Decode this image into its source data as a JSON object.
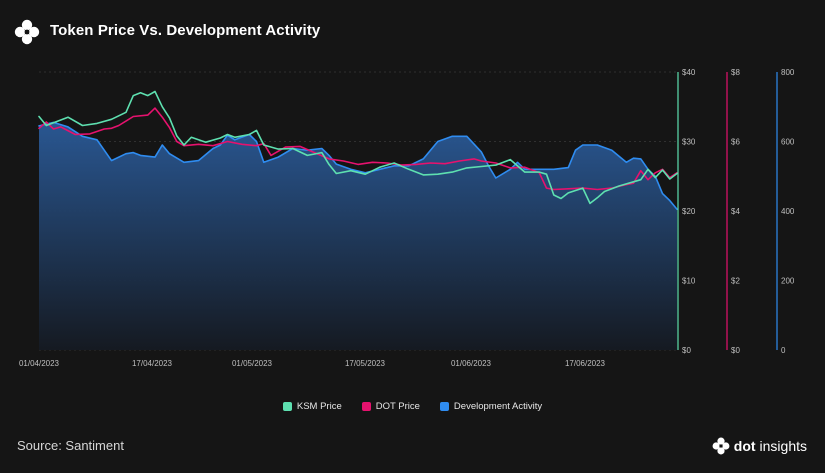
{
  "header": {
    "title": "Token Price Vs. Development Activity",
    "logo_icon": "flower-logo-icon"
  },
  "footer": {
    "source": "Source: Santiment",
    "brand_part1": "dot",
    "brand_part2": "insights"
  },
  "colors": {
    "background": "#151515",
    "ksm": "#5ee0b0",
    "dot": "#e6126e",
    "dev": "#2f8cf0",
    "grid": "#3a3a3a",
    "text": "#bfbfbf"
  },
  "chart_data": {
    "type": "line",
    "title": "Token Price Vs. Development Activity",
    "x_ticks": [
      "01/04/2023",
      "17/04/2023",
      "01/05/2023",
      "17/05/2023",
      "01/06/2023",
      "17/06/2023"
    ],
    "x_range": [
      "2023-04-01",
      "2023-06-28"
    ],
    "axes": [
      {
        "id": "ksm",
        "ticks": [
          "$40",
          "$30",
          "$20",
          "$10",
          "$0"
        ],
        "range": [
          0,
          40
        ],
        "color": "#5ee0b0"
      },
      {
        "id": "dot",
        "ticks": [
          "$8",
          "$6",
          "$4",
          "$2",
          "$0"
        ],
        "range": [
          0,
          8
        ],
        "color": "#e6126e"
      },
      {
        "id": "dev",
        "ticks": [
          "800",
          "600",
          "400",
          "200",
          "0"
        ],
        "range": [
          0,
          800
        ],
        "color": "#2f8cf0"
      }
    ],
    "grid": "horizontal dashed",
    "legend_position": "bottom",
    "series": [
      {
        "name": "KSM Price",
        "axis": "ksm",
        "color": "#5ee0b0",
        "points": [
          [
            "2023-04-01",
            33.6
          ],
          [
            "2023-04-02",
            32.3
          ],
          [
            "2023-04-03",
            32.7
          ],
          [
            "2023-04-05",
            33.5
          ],
          [
            "2023-04-07",
            32.3
          ],
          [
            "2023-04-09",
            32.6
          ],
          [
            "2023-04-11",
            33.2
          ],
          [
            "2023-04-13",
            34.2
          ],
          [
            "2023-04-14",
            36.6
          ],
          [
            "2023-04-15",
            37.0
          ],
          [
            "2023-04-16",
            36.6
          ],
          [
            "2023-04-17",
            37.2
          ],
          [
            "2023-04-18",
            35.0
          ],
          [
            "2023-04-19",
            33.4
          ],
          [
            "2023-04-20",
            30.8
          ],
          [
            "2023-04-21",
            29.5
          ],
          [
            "2023-04-22",
            30.6
          ],
          [
            "2023-04-24",
            29.9
          ],
          [
            "2023-04-26",
            30.5
          ],
          [
            "2023-04-27",
            31.0
          ],
          [
            "2023-04-28",
            30.6
          ],
          [
            "2023-04-30",
            31.0
          ],
          [
            "2023-05-01",
            31.6
          ],
          [
            "2023-05-02",
            29.5
          ],
          [
            "2023-05-04",
            28.9
          ],
          [
            "2023-05-06",
            29.0
          ],
          [
            "2023-05-08",
            28.0
          ],
          [
            "2023-05-10",
            28.4
          ],
          [
            "2023-05-11",
            26.7
          ],
          [
            "2023-05-12",
            25.4
          ],
          [
            "2023-05-14",
            25.8
          ],
          [
            "2023-05-16",
            25.3
          ],
          [
            "2023-05-18",
            26.3
          ],
          [
            "2023-05-20",
            26.9
          ],
          [
            "2023-05-22",
            26.0
          ],
          [
            "2023-05-24",
            25.2
          ],
          [
            "2023-05-26",
            25.3
          ],
          [
            "2023-05-28",
            25.6
          ],
          [
            "2023-05-30",
            26.2
          ],
          [
            "2023-06-01",
            26.4
          ],
          [
            "2023-06-03",
            26.6
          ],
          [
            "2023-06-05",
            27.4
          ],
          [
            "2023-06-07",
            25.6
          ],
          [
            "2023-06-09",
            25.6
          ],
          [
            "2023-06-10",
            25.3
          ],
          [
            "2023-06-11",
            22.3
          ],
          [
            "2023-06-12",
            21.8
          ],
          [
            "2023-06-13",
            22.6
          ],
          [
            "2023-06-15",
            23.3
          ],
          [
            "2023-06-16",
            21.1
          ],
          [
            "2023-06-17",
            21.9
          ],
          [
            "2023-06-18",
            22.8
          ],
          [
            "2023-06-20",
            23.6
          ],
          [
            "2023-06-22",
            24.2
          ],
          [
            "2023-06-23",
            24.5
          ],
          [
            "2023-06-24",
            26.0
          ],
          [
            "2023-06-25",
            24.8
          ],
          [
            "2023-06-26",
            25.9
          ],
          [
            "2023-06-27",
            24.6
          ],
          [
            "2023-06-28",
            25.4
          ]
        ]
      },
      {
        "name": "DOT Price",
        "axis": "dot",
        "color": "#e6126e",
        "points": [
          [
            "2023-04-01",
            6.38
          ],
          [
            "2023-04-02",
            6.56
          ],
          [
            "2023-04-03",
            6.36
          ],
          [
            "2023-04-04",
            6.42
          ],
          [
            "2023-04-06",
            6.2
          ],
          [
            "2023-04-08",
            6.22
          ],
          [
            "2023-04-10",
            6.36
          ],
          [
            "2023-04-11",
            6.38
          ],
          [
            "2023-04-12",
            6.46
          ],
          [
            "2023-04-14",
            6.72
          ],
          [
            "2023-04-16",
            6.76
          ],
          [
            "2023-04-17",
            6.96
          ],
          [
            "2023-04-18",
            6.7
          ],
          [
            "2023-04-19",
            6.4
          ],
          [
            "2023-04-20",
            6.0
          ],
          [
            "2023-04-21",
            5.88
          ],
          [
            "2023-04-23",
            5.92
          ],
          [
            "2023-04-25",
            5.88
          ],
          [
            "2023-04-27",
            6.0
          ],
          [
            "2023-04-29",
            5.92
          ],
          [
            "2023-05-01",
            5.88
          ],
          [
            "2023-05-02",
            5.94
          ],
          [
            "2023-05-03",
            5.6
          ],
          [
            "2023-05-05",
            5.84
          ],
          [
            "2023-05-07",
            5.86
          ],
          [
            "2023-05-09",
            5.68
          ],
          [
            "2023-05-11",
            5.5
          ],
          [
            "2023-05-13",
            5.44
          ],
          [
            "2023-05-15",
            5.34
          ],
          [
            "2023-05-17",
            5.4
          ],
          [
            "2023-05-19",
            5.38
          ],
          [
            "2023-05-21",
            5.32
          ],
          [
            "2023-05-23",
            5.34
          ],
          [
            "2023-05-25",
            5.38
          ],
          [
            "2023-05-27",
            5.36
          ],
          [
            "2023-05-29",
            5.44
          ],
          [
            "2023-05-31",
            5.5
          ],
          [
            "2023-06-01",
            5.44
          ],
          [
            "2023-06-03",
            5.38
          ],
          [
            "2023-06-05",
            5.24
          ],
          [
            "2023-06-07",
            5.26
          ],
          [
            "2023-06-09",
            5.1
          ],
          [
            "2023-06-10",
            4.66
          ],
          [
            "2023-06-11",
            4.62
          ],
          [
            "2023-06-13",
            4.64
          ],
          [
            "2023-06-15",
            4.66
          ],
          [
            "2023-06-17",
            4.62
          ],
          [
            "2023-06-19",
            4.66
          ],
          [
            "2023-06-21",
            4.76
          ],
          [
            "2023-06-22",
            4.8
          ],
          [
            "2023-06-23",
            5.16
          ],
          [
            "2023-06-24",
            4.9
          ],
          [
            "2023-06-25",
            5.1
          ],
          [
            "2023-06-26",
            5.2
          ],
          [
            "2023-06-27",
            4.96
          ],
          [
            "2023-06-28",
            5.1
          ]
        ]
      },
      {
        "name": "Development Activity",
        "axis": "dev",
        "color": "#2f8cf0",
        "points": [
          [
            "2023-04-01",
            645
          ],
          [
            "2023-04-03",
            655
          ],
          [
            "2023-04-05",
            642
          ],
          [
            "2023-04-07",
            615
          ],
          [
            "2023-04-09",
            605
          ],
          [
            "2023-04-11",
            545
          ],
          [
            "2023-04-13",
            565
          ],
          [
            "2023-04-14",
            568
          ],
          [
            "2023-04-15",
            560
          ],
          [
            "2023-04-17",
            555
          ],
          [
            "2023-04-18",
            590
          ],
          [
            "2023-04-19",
            565
          ],
          [
            "2023-04-21",
            540
          ],
          [
            "2023-04-23",
            545
          ],
          [
            "2023-04-25",
            580
          ],
          [
            "2023-04-26",
            590
          ],
          [
            "2023-04-27",
            618
          ],
          [
            "2023-04-28",
            605
          ],
          [
            "2023-04-30",
            620
          ],
          [
            "2023-05-01",
            600
          ],
          [
            "2023-05-02",
            540
          ],
          [
            "2023-05-04",
            555
          ],
          [
            "2023-05-06",
            580
          ],
          [
            "2023-05-08",
            575
          ],
          [
            "2023-05-10",
            580
          ],
          [
            "2023-05-11",
            560
          ],
          [
            "2023-05-12",
            535
          ],
          [
            "2023-05-14",
            520
          ],
          [
            "2023-05-16",
            510
          ],
          [
            "2023-05-18",
            520
          ],
          [
            "2023-05-20",
            530
          ],
          [
            "2023-05-22",
            530
          ],
          [
            "2023-05-24",
            550
          ],
          [
            "2023-05-26",
            600
          ],
          [
            "2023-05-28",
            615
          ],
          [
            "2023-05-30",
            615
          ],
          [
            "2023-06-01",
            570
          ],
          [
            "2023-06-02",
            530
          ],
          [
            "2023-06-03",
            495
          ],
          [
            "2023-06-05",
            520
          ],
          [
            "2023-06-06",
            540
          ],
          [
            "2023-06-07",
            520
          ],
          [
            "2023-06-09",
            520
          ],
          [
            "2023-06-11",
            520
          ],
          [
            "2023-06-13",
            525
          ],
          [
            "2023-06-14",
            575
          ],
          [
            "2023-06-15",
            590
          ],
          [
            "2023-06-17",
            590
          ],
          [
            "2023-06-19",
            575
          ],
          [
            "2023-06-21",
            540
          ],
          [
            "2023-06-22",
            552
          ],
          [
            "2023-06-23",
            550
          ],
          [
            "2023-06-24",
            520
          ],
          [
            "2023-06-25",
            500
          ],
          [
            "2023-06-26",
            450
          ],
          [
            "2023-06-27",
            430
          ],
          [
            "2023-06-28",
            405
          ]
        ]
      }
    ]
  },
  "legend": [
    {
      "label": "KSM Price",
      "color": "#5ee0b0"
    },
    {
      "label": "DOT Price",
      "color": "#e6126e"
    },
    {
      "label": "Development Activity",
      "color": "#2f8cf0"
    }
  ]
}
